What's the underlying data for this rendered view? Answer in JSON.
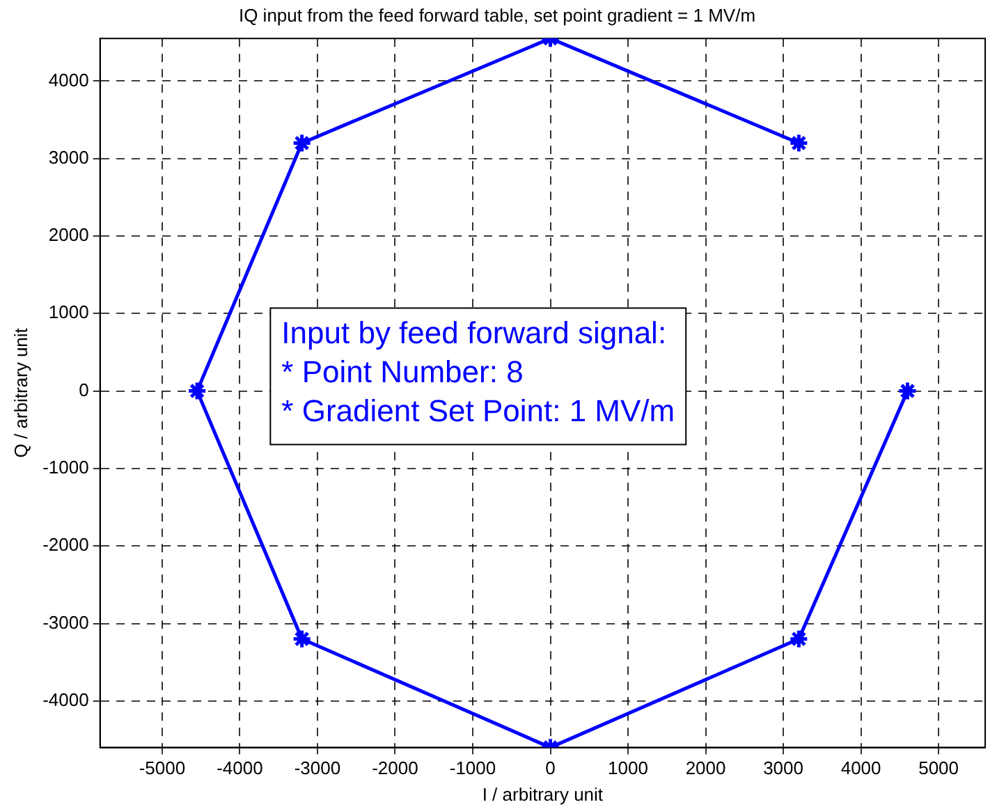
{
  "chart_data": {
    "type": "line",
    "title": "IQ input from the feed forward table, set point gradient = 1 MV/m",
    "xlabel": "I / arbitrary unit",
    "ylabel": "Q / arbitrary unit",
    "x": [
      4600,
      3200,
      0,
      -3200,
      -4550,
      -3200,
      0,
      3200
    ],
    "series": [
      {
        "color": "#0000ff",
        "values": [
          0,
          -3200,
          -4600,
          -3200,
          0,
          3200,
          4550,
          3200
        ]
      }
    ],
    "xlim": [
      -5800,
      5600
    ],
    "xticks": [
      -5000,
      -4000,
      -3000,
      -2000,
      -1000,
      0,
      1000,
      2000,
      3000,
      4000,
      5000
    ],
    "ylim": [
      -4600,
      4550
    ],
    "yticks": [
      -4000,
      -3000,
      -2000,
      -1000,
      0,
      1000,
      2000,
      3000,
      4000
    ],
    "grid": true,
    "legend": false,
    "marker": "cross",
    "line_style": "solid",
    "annotations": [
      "Input by feed forward signal:",
      "* Point Number: 8",
      "* Gradient Set Point: 1 MV/m"
    ]
  }
}
